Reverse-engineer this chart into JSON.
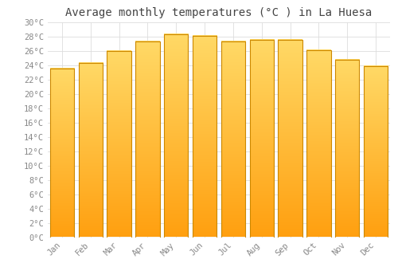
{
  "title": "Average monthly temperatures (°C ) in La Huesa",
  "months": [
    "Jan",
    "Feb",
    "Mar",
    "Apr",
    "May",
    "Jun",
    "Jul",
    "Aug",
    "Sep",
    "Oct",
    "Nov",
    "Dec"
  ],
  "values": [
    23.5,
    24.3,
    26.0,
    27.3,
    28.3,
    28.1,
    27.3,
    27.6,
    27.5,
    26.1,
    24.8,
    23.9
  ],
  "bar_color_bottom": "#FFA010",
  "bar_color_top": "#FFD966",
  "bar_edge_color": "#CC8800",
  "ylim": [
    0,
    30
  ],
  "yticks": [
    0,
    2,
    4,
    6,
    8,
    10,
    12,
    14,
    16,
    18,
    20,
    22,
    24,
    26,
    28,
    30
  ],
  "ytick_labels": [
    "0°C",
    "2°C",
    "4°C",
    "6°C",
    "8°C",
    "10°C",
    "12°C",
    "14°C",
    "16°C",
    "18°C",
    "20°C",
    "22°C",
    "24°C",
    "26°C",
    "28°C",
    "30°C"
  ],
  "background_color": "#ffffff",
  "grid_color": "#dddddd",
  "title_fontsize": 10,
  "tick_fontsize": 7.5,
  "font_family": "monospace",
  "bar_width": 0.85
}
